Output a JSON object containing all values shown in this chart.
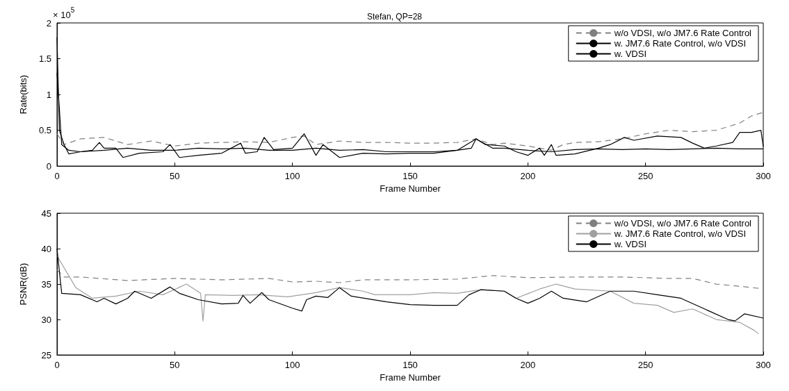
{
  "chart_data": [
    {
      "type": "line",
      "title": "Stefan, QP=28",
      "xlabel": "Frame Number",
      "ylabel": "Rate(bits)",
      "annotations": [
        "× 10$^{5}$"
      ],
      "xlim": [
        0,
        300
      ],
      "xticks": [
        0,
        50,
        100,
        150,
        200,
        250,
        300
      ],
      "ylim": [
        0,
        2
      ],
      "yticks": [
        0,
        0.5,
        1,
        1.5,
        2
      ],
      "grid": false,
      "legend": "top right",
      "marker": "none",
      "series": [
        {
          "name": "w/o VDSI, w/o JM7.6 Rate Control",
          "color": "#808080",
          "line_style": "dashed",
          "x": [
            0,
            3,
            10,
            20,
            30,
            40,
            50,
            60,
            70,
            80,
            90,
            100,
            105,
            110,
            120,
            130,
            140,
            150,
            160,
            170,
            178,
            185,
            190,
            200,
            210,
            215,
            220,
            230,
            240,
            250,
            260,
            270,
            280,
            290,
            295,
            300
          ],
          "values": [
            0.45,
            0.3,
            0.38,
            0.4,
            0.3,
            0.35,
            0.28,
            0.32,
            0.33,
            0.34,
            0.33,
            0.4,
            0.42,
            0.3,
            0.35,
            0.33,
            0.33,
            0.32,
            0.32,
            0.33,
            0.38,
            0.3,
            0.32,
            0.28,
            0.22,
            0.3,
            0.33,
            0.34,
            0.38,
            0.45,
            0.5,
            0.48,
            0.5,
            0.6,
            0.7,
            0.75
          ]
        },
        {
          "name": "w. JM7.6 Rate Control, w/o VDSI",
          "color": "#000000",
          "line_style": "solid",
          "x": [
            0,
            2,
            5,
            10,
            20,
            30,
            40,
            50,
            60,
            70,
            80,
            90,
            100,
            110,
            120,
            130,
            140,
            150,
            160,
            170,
            178,
            185,
            190,
            200,
            210,
            220,
            230,
            240,
            250,
            260,
            270,
            280,
            290,
            300
          ],
          "values": [
            1.3,
            0.3,
            0.22,
            0.2,
            0.22,
            0.25,
            0.22,
            0.22,
            0.25,
            0.24,
            0.25,
            0.22,
            0.22,
            0.25,
            0.22,
            0.23,
            0.2,
            0.2,
            0.2,
            0.22,
            0.38,
            0.25,
            0.25,
            0.22,
            0.2,
            0.23,
            0.24,
            0.23,
            0.24,
            0.23,
            0.24,
            0.25,
            0.24,
            0.24
          ]
        },
        {
          "name": "w. VDSI",
          "color": "#000000",
          "line_style": "solid",
          "x": [
            0,
            1,
            3,
            5,
            10,
            15,
            18,
            20,
            25,
            28,
            35,
            45,
            48,
            52,
            60,
            70,
            78,
            80,
            85,
            88,
            92,
            100,
            105,
            110,
            113,
            120,
            130,
            140,
            150,
            160,
            170,
            176,
            178,
            182,
            190,
            195,
            200,
            205,
            207,
            210,
            212,
            220,
            230,
            235,
            241,
            245,
            255,
            265,
            270,
            275,
            280,
            287,
            290,
            295,
            299,
            300
          ],
          "values": [
            1.8,
            0.5,
            0.3,
            0.17,
            0.2,
            0.22,
            0.33,
            0.25,
            0.25,
            0.12,
            0.18,
            0.2,
            0.3,
            0.12,
            0.15,
            0.18,
            0.32,
            0.18,
            0.2,
            0.4,
            0.23,
            0.25,
            0.45,
            0.15,
            0.3,
            0.12,
            0.18,
            0.17,
            0.18,
            0.18,
            0.22,
            0.25,
            0.38,
            0.3,
            0.28,
            0.2,
            0.15,
            0.25,
            0.15,
            0.3,
            0.15,
            0.17,
            0.25,
            0.3,
            0.4,
            0.36,
            0.42,
            0.4,
            0.32,
            0.25,
            0.28,
            0.33,
            0.47,
            0.47,
            0.5,
            0.27
          ]
        }
      ]
    },
    {
      "type": "line",
      "xlabel": "Frame Number",
      "ylabel": "PSNR(dB)",
      "xlim": [
        0,
        300
      ],
      "xticks": [
        0,
        50,
        100,
        150,
        200,
        250,
        300
      ],
      "ylim": [
        25,
        45
      ],
      "yticks": [
        25,
        30,
        35,
        40,
        45
      ],
      "grid": false,
      "legend": "top right",
      "marker": "none",
      "series": [
        {
          "name": "w/o VDSI, w/o JM7.6 Rate Control",
          "color": "#808080",
          "line_style": "dashed",
          "x": [
            0,
            3,
            10,
            30,
            50,
            70,
            90,
            100,
            110,
            120,
            130,
            150,
            170,
            185,
            200,
            220,
            240,
            260,
            270,
            280,
            290,
            298,
            300
          ],
          "values": [
            37,
            36,
            36,
            35.5,
            35.8,
            35.6,
            35.8,
            35.3,
            35.4,
            35.2,
            35.6,
            35.6,
            35.7,
            36.2,
            35.9,
            36,
            36,
            35.8,
            35.8,
            35,
            34.7,
            34.4,
            34.3
          ]
        },
        {
          "name": "w. JM7.6 Rate Control, w/o VDSI",
          "color": "#a0a0a0",
          "line_style": "solid",
          "x": [
            0,
            8,
            15,
            25,
            35,
            45,
            55,
            61,
            62,
            63,
            75,
            85,
            98,
            110,
            120,
            130,
            135,
            150,
            160,
            170,
            180,
            190,
            195,
            205,
            212,
            220,
            235,
            245,
            255,
            262,
            270,
            280,
            290,
            296,
            298
          ],
          "values": [
            39,
            34.5,
            33,
            33.3,
            34,
            33.5,
            35,
            33.7,
            29.8,
            33.5,
            33.4,
            33.5,
            33.2,
            33.8,
            34.5,
            34,
            33.5,
            33.5,
            33.8,
            33.7,
            34.2,
            34,
            33,
            34.3,
            35,
            34.3,
            34,
            32.3,
            32,
            31,
            31.5,
            30,
            29.6,
            28.5,
            28
          ]
        },
        {
          "name": "w. VDSI",
          "color": "#000000",
          "line_style": "solid",
          "x": [
            0,
            2,
            10,
            17,
            20,
            25,
            30,
            33,
            40,
            48,
            52,
            60,
            70,
            77,
            79,
            82,
            87,
            90,
            100,
            104,
            106,
            110,
            115,
            120,
            125,
            140,
            150,
            160,
            170,
            175,
            180,
            190,
            195,
            200,
            205,
            210,
            215,
            225,
            235,
            245,
            255,
            265,
            275,
            285,
            288,
            292,
            300
          ],
          "values": [
            40,
            33.7,
            33.5,
            32.5,
            33,
            32.2,
            33,
            34,
            33,
            34.6,
            33.7,
            32.8,
            32.2,
            32.3,
            33.4,
            32.3,
            33.8,
            32.8,
            31.6,
            31.2,
            32.8,
            33.3,
            33.1,
            34.5,
            33.3,
            32.5,
            32.1,
            32,
            32,
            33.5,
            34.2,
            34,
            33,
            32.3,
            33,
            34,
            33,
            32.5,
            34,
            34,
            33.5,
            33,
            31.5,
            30,
            29.8,
            30.8,
            30.2
          ]
        }
      ]
    }
  ]
}
